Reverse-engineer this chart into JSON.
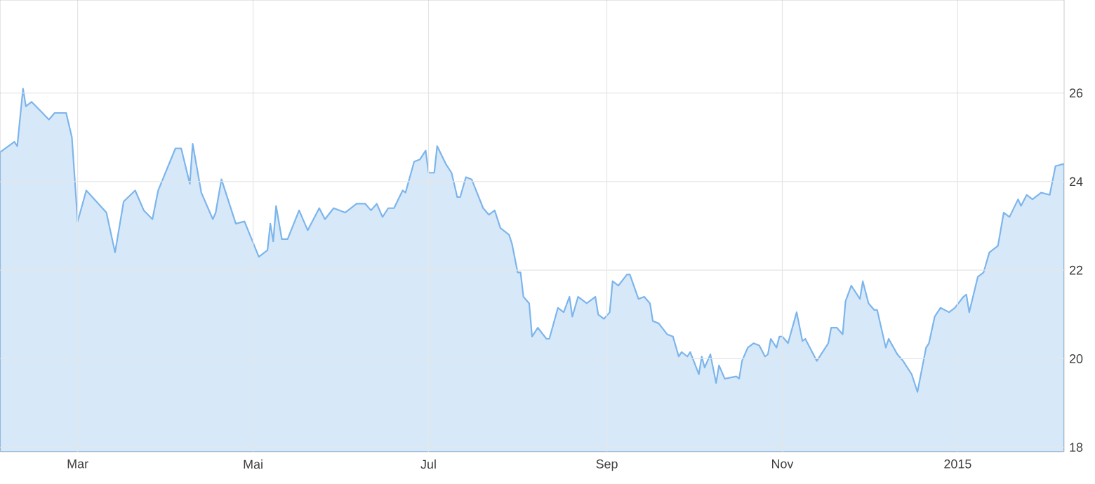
{
  "chart_data": {
    "type": "area",
    "grid": true,
    "xlim": [
      "2014-02-02",
      "2015-02-07"
    ],
    "ylim": [
      17.9,
      28.1
    ],
    "xticks": [
      {
        "value": "2014-03-01",
        "label": "Mar"
      },
      {
        "value": "2014-05-01",
        "label": "Mai"
      },
      {
        "value": "2014-07-01",
        "label": "Jul"
      },
      {
        "value": "2014-09-01",
        "label": "Sep"
      },
      {
        "value": "2014-11-01",
        "label": "Nov"
      },
      {
        "value": "2015-01-01",
        "label": "2015"
      }
    ],
    "yticks": [
      18,
      20,
      22,
      24,
      26
    ],
    "x": [
      "2014-02-02",
      "2014-02-07",
      "2014-02-08",
      "2014-02-10",
      "2014-02-11",
      "2014-02-13",
      "2014-02-16",
      "2014-02-19",
      "2014-02-21",
      "2014-02-25",
      "2014-02-27",
      "2014-03-01",
      "2014-03-04",
      "2014-03-11",
      "2014-03-14",
      "2014-03-17",
      "2014-03-21",
      "2014-03-24",
      "2014-03-27",
      "2014-03-29",
      "2014-04-04",
      "2014-04-06",
      "2014-04-09",
      "2014-04-10",
      "2014-04-13",
      "2014-04-17",
      "2014-04-18",
      "2014-04-20",
      "2014-04-25",
      "2014-04-28",
      "2014-05-03",
      "2014-05-06",
      "2014-05-07",
      "2014-05-08",
      "2014-05-09",
      "2014-05-11",
      "2014-05-13",
      "2014-05-17",
      "2014-05-20",
      "2014-05-24",
      "2014-05-26",
      "2014-05-29",
      "2014-06-02",
      "2014-06-06",
      "2014-06-09",
      "2014-06-11",
      "2014-06-13",
      "2014-06-15",
      "2014-06-17",
      "2014-06-19",
      "2014-06-22",
      "2014-06-23",
      "2014-06-26",
      "2014-06-28",
      "2014-06-30",
      "2014-07-01",
      "2014-07-03",
      "2014-07-04",
      "2014-07-07",
      "2014-07-09",
      "2014-07-11",
      "2014-07-12",
      "2014-07-14",
      "2014-07-16",
      "2014-07-20",
      "2014-07-22",
      "2014-07-24",
      "2014-07-26",
      "2014-07-29",
      "2014-07-30",
      "2014-08-01",
      "2014-08-02",
      "2014-08-03",
      "2014-08-05",
      "2014-08-06",
      "2014-08-08",
      "2014-08-11",
      "2014-08-12",
      "2014-08-15",
      "2014-08-17",
      "2014-08-19",
      "2014-08-20",
      "2014-08-22",
      "2014-08-25",
      "2014-08-28",
      "2014-08-29",
      "2014-08-31",
      "2014-09-02",
      "2014-09-03",
      "2014-09-05",
      "2014-09-08",
      "2014-09-09",
      "2014-09-12",
      "2014-09-14",
      "2014-09-16",
      "2014-09-17",
      "2014-09-19",
      "2014-09-22",
      "2014-09-24",
      "2014-09-26",
      "2014-09-27",
      "2014-09-29",
      "2014-09-30",
      "2014-10-03",
      "2014-10-04",
      "2014-10-05",
      "2014-10-07",
      "2014-10-09",
      "2014-10-10",
      "2014-10-12",
      "2014-10-16",
      "2014-10-17",
      "2014-10-18",
      "2014-10-20",
      "2014-10-22",
      "2014-10-24",
      "2014-10-26",
      "2014-10-27",
      "2014-10-28",
      "2014-10-30",
      "2014-10-31",
      "2014-11-01",
      "2014-11-03",
      "2014-11-06",
      "2014-11-08",
      "2014-11-09",
      "2014-11-13",
      "2014-11-17",
      "2014-11-18",
      "2014-11-20",
      "2014-11-22",
      "2014-11-23",
      "2014-11-25",
      "2014-11-28",
      "2014-11-29",
      "2014-12-01",
      "2014-12-03",
      "2014-12-04",
      "2014-12-07",
      "2014-12-08",
      "2014-12-11",
      "2014-12-13",
      "2014-12-16",
      "2014-12-18",
      "2014-12-21",
      "2014-12-22",
      "2014-12-24",
      "2014-12-26",
      "2014-12-29",
      "2014-12-31",
      "2015-01-03",
      "2015-01-04",
      "2015-01-05",
      "2015-01-08",
      "2015-01-10",
      "2015-01-12",
      "2015-01-15",
      "2015-01-17",
      "2015-01-19",
      "2015-01-22",
      "2015-01-23",
      "2015-01-25",
      "2015-01-27",
      "2015-01-30",
      "2015-02-02",
      "2015-02-04",
      "2015-02-07"
    ],
    "series": [
      {
        "color": "#7cb5ec",
        "values": [
          24.66,
          24.9,
          24.8,
          26.1,
          25.7,
          25.8,
          25.6,
          25.4,
          25.55,
          25.55,
          25.0,
          23.1,
          23.8,
          23.3,
          22.4,
          23.55,
          23.8,
          23.35,
          23.15,
          23.8,
          24.75,
          24.75,
          23.95,
          24.85,
          23.75,
          23.15,
          23.3,
          24.05,
          23.05,
          23.1,
          22.3,
          22.45,
          23.05,
          22.65,
          23.45,
          22.7,
          22.7,
          23.35,
          22.9,
          23.4,
          23.15,
          23.4,
          23.3,
          23.5,
          23.5,
          23.35,
          23.5,
          23.2,
          23.4,
          23.4,
          23.8,
          23.75,
          24.45,
          24.5,
          24.7,
          24.2,
          24.2,
          24.8,
          24.4,
          24.2,
          23.65,
          23.65,
          24.1,
          24.05,
          23.4,
          23.25,
          23.35,
          22.95,
          22.8,
          22.6,
          21.95,
          21.95,
          21.4,
          21.25,
          20.5,
          20.7,
          20.45,
          20.45,
          21.15,
          21.05,
          21.4,
          20.95,
          21.4,
          21.25,
          21.4,
          21.0,
          20.9,
          21.05,
          21.75,
          21.65,
          21.9,
          21.9,
          21.35,
          21.4,
          21.25,
          20.85,
          20.8,
          20.55,
          20.5,
          20.05,
          20.15,
          20.05,
          20.15,
          19.65,
          20.05,
          19.8,
          20.1,
          19.45,
          19.85,
          19.55,
          19.6,
          19.55,
          19.95,
          20.25,
          20.35,
          20.3,
          20.05,
          20.1,
          20.45,
          20.25,
          20.5,
          20.5,
          20.35,
          21.05,
          20.4,
          20.45,
          19.95,
          20.35,
          20.7,
          20.7,
          20.55,
          21.3,
          21.65,
          21.35,
          21.75,
          21.25,
          21.1,
          21.1,
          20.25,
          20.45,
          20.1,
          19.95,
          19.65,
          19.25,
          20.25,
          20.35,
          20.95,
          21.15,
          21.05,
          21.15,
          21.4,
          21.45,
          21.05,
          21.85,
          21.95,
          22.4,
          22.55,
          23.3,
          23.2,
          23.6,
          23.45,
          23.7,
          23.6,
          23.75,
          23.7,
          24.35,
          24.4
        ]
      }
    ]
  }
}
